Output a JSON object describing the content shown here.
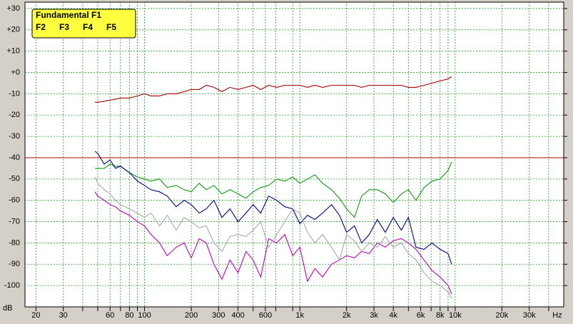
{
  "chart_data": {
    "type": "line",
    "log_x": true,
    "grid": true,
    "x_unit_label": "Hz",
    "y_unit_label": "dB",
    "xlim": [
      17,
      50000
    ],
    "ylim": [
      -110,
      33
    ],
    "xticks": [
      20,
      30,
      60,
      80,
      100,
      200,
      300,
      400,
      600,
      {
        "value": 1000,
        "label": "1k"
      },
      {
        "value": 2000,
        "label": "2k"
      },
      {
        "value": 3000,
        "label": "3k"
      },
      {
        "value": 4000,
        "label": "4k"
      },
      {
        "value": 6000,
        "label": "6k"
      },
      {
        "value": 8000,
        "label": "8k"
      },
      {
        "value": 10000,
        "label": "10k"
      },
      {
        "value": 20000,
        "label": "20k"
      },
      {
        "value": 30000,
        "label": "30k"
      }
    ],
    "xminor": [
      40,
      50,
      70,
      90,
      500,
      700,
      900,
      5000,
      7000,
      9000,
      40000
    ],
    "yticks": [
      {
        "value": 30,
        "label": "+30"
      },
      {
        "value": 20,
        "label": "+20"
      },
      {
        "value": 10,
        "label": "+10"
      },
      {
        "value": 0,
        "label": "+0"
      },
      -10,
      -20,
      -30,
      -40,
      -50,
      -60,
      -70,
      -80,
      -90,
      -100
    ],
    "reference_line": {
      "value": -40,
      "color": "#b00000"
    },
    "x": [
      48,
      50,
      55,
      60,
      65,
      70,
      80,
      90,
      100,
      110,
      125,
      140,
      160,
      180,
      200,
      225,
      250,
      280,
      315,
      355,
      400,
      450,
      500,
      560,
      630,
      710,
      800,
      900,
      1000,
      1120,
      1250,
      1400,
      1600,
      1800,
      2000,
      2250,
      2500,
      2800,
      3150,
      3550,
      4000,
      4500,
      5000,
      5600,
      6300,
      7100,
      8000,
      9000,
      9500
    ],
    "series": [
      {
        "name": "Fundamental F1",
        "color": "#a00000",
        "values": [
          -14,
          -14,
          -13.5,
          -13,
          -12.5,
          -12,
          -12,
          -11,
          -10,
          -11,
          -11,
          -10,
          -10,
          -9,
          -8,
          -8,
          -6,
          -7,
          -9,
          -7,
          -8,
          -7,
          -6,
          -8,
          -6,
          -7,
          -6,
          -6,
          -6,
          -7,
          -6,
          -7,
          -6,
          -6,
          -6,
          -6,
          -7,
          -6,
          -6,
          -6,
          -6,
          -6,
          -7,
          -7,
          -6,
          -5,
          -4,
          -3,
          -2
        ]
      },
      {
        "name": "F2",
        "color": "#109a10",
        "values": [
          -45,
          -45,
          -45,
          -43,
          -44,
          -44,
          -47,
          -49,
          -50,
          -51,
          -50,
          -54,
          -53,
          -55,
          -56,
          -52,
          -55,
          -53,
          -57,
          -55,
          -57,
          -59,
          -56,
          -54,
          -53,
          -50,
          -51,
          -49,
          -52,
          -50,
          -48,
          -52,
          -55,
          -59,
          -64,
          -68,
          -58,
          -55,
          -55,
          -57,
          -61,
          -57,
          -55,
          -60,
          -54,
          -51,
          -50,
          -46,
          -42
        ]
      },
      {
        "name": "F3",
        "color": "#000090",
        "values": [
          -37,
          -38,
          -43,
          -41,
          -45,
          -44,
          -47,
          -51,
          -53,
          -55,
          -56,
          -58,
          -63,
          -60,
          -62,
          -66,
          -64,
          -60,
          -68,
          -64,
          -70,
          -66,
          -62,
          -66,
          -58,
          -60,
          -63,
          -64,
          -71,
          -67,
          -69,
          -66,
          -62,
          -67,
          -75,
          -72,
          -80,
          -76,
          -69,
          -75,
          -68,
          -74,
          -68,
          -82,
          -83,
          -80,
          -83,
          -85,
          -90
        ]
      },
      {
        "name": "F4",
        "color": "#c000c0",
        "values": [
          -56,
          -58,
          -60,
          -62,
          -63,
          -65,
          -67,
          -70,
          -72,
          -76,
          -80,
          -86,
          -82,
          -80,
          -87,
          -78,
          -80,
          -90,
          -97,
          -88,
          -94,
          -84,
          -88,
          -96,
          -78,
          -80,
          -76,
          -86,
          -82,
          -98,
          -92,
          -96,
          -90,
          -88,
          -86,
          -87,
          -84,
          -85,
          -80,
          -82,
          -79,
          -78,
          -80,
          -83,
          -88,
          -93,
          -96,
          -100,
          -104
        ]
      },
      {
        "name": "F5",
        "color": "#a8a8a8",
        "values": [
          -49,
          -52,
          -55,
          -57,
          -60,
          -62,
          -64,
          -66,
          -68,
          -66,
          -72,
          -67,
          -74,
          -68,
          -70,
          -73,
          -72,
          -80,
          -84,
          -77,
          -76,
          -77,
          -74,
          -70,
          -82,
          -76,
          -70,
          -64,
          -66,
          -75,
          -80,
          -76,
          -82,
          -88,
          -76,
          -79,
          -84,
          -80,
          -82,
          -77,
          -82,
          -80,
          -85,
          -88,
          -94,
          -98,
          -100,
          -103,
          -106
        ]
      }
    ]
  }
}
